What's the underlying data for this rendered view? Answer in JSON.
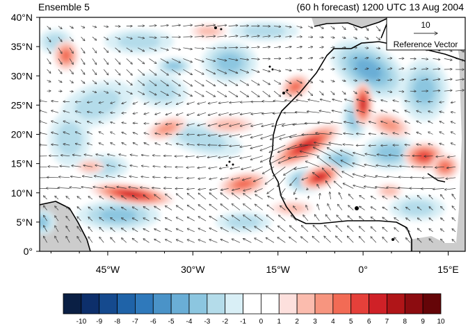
{
  "title_left": "Ensemble 5",
  "title_right": "(60 h forecast) 1200 UTC 13 Aug 2004",
  "reference_vector": {
    "magnitude": "10",
    "label": "Reference Vector"
  },
  "axes": {
    "lon_labels": [
      "45°W",
      "30°W",
      "15°W",
      "0°",
      "15°E"
    ],
    "lat_labels": [
      "40°N",
      "35°N",
      "30°N",
      "25°N",
      "20°N",
      "15°N",
      "10°N",
      "5°N",
      "0°"
    ],
    "lon_range": [
      -57,
      18
    ],
    "lat_range": [
      0,
      40
    ]
  },
  "colorbar": {
    "labels": [
      "-10",
      "-9",
      "-8",
      "-7",
      "-6",
      "-5",
      "-4",
      "-3",
      "-2",
      "-1",
      "0",
      "1",
      "2",
      "3",
      "4",
      "5",
      "6",
      "7",
      "8",
      "9",
      "10"
    ],
    "colors": [
      "#0a1f44",
      "#0d2f6b",
      "#154a8e",
      "#1f63a8",
      "#2f79bb",
      "#4a93c8",
      "#6aaed6",
      "#8cc6e0",
      "#b4dcea",
      "#d9eff6",
      "#ffffff",
      "#ffffff",
      "#fde0dd",
      "#fbbcae",
      "#f7957f",
      "#f26b55",
      "#e5403a",
      "#cf2127",
      "#b01518",
      "#8c0c10",
      "#650508"
    ]
  },
  "colors": {
    "land": "#cccccc",
    "coast": "#000000",
    "vector": "#333333"
  }
}
